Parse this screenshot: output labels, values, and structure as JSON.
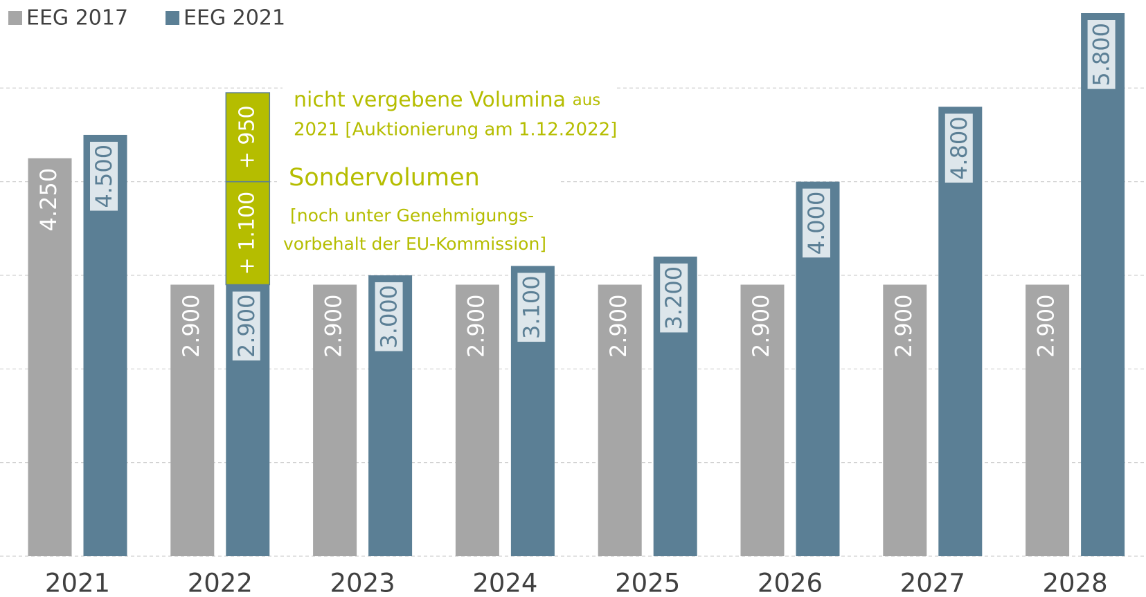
{
  "chart_data": {
    "type": "bar",
    "categories": [
      "2021",
      "2022",
      "2023",
      "2024",
      "2025",
      "2026",
      "2027",
      "2028"
    ],
    "series": [
      {
        "name": "EEG 2017",
        "color": "#a6a6a6",
        "values": [
          4250,
          2900,
          2900,
          2900,
          2900,
          2900,
          2900,
          2900
        ],
        "value_labels": [
          "4.250",
          "2.900",
          "2.900",
          "2.900",
          "2.900",
          "2.900",
          "2.900",
          "2.900"
        ]
      },
      {
        "name": "EEG 2021",
        "color": "#5b7f95",
        "values": [
          4500,
          2900,
          3000,
          3100,
          3200,
          4000,
          4800,
          5800
        ],
        "value_labels": [
          "4.500",
          "2.900",
          "3.000",
          "3.100",
          "3.200",
          "4.000",
          "4.800",
          "5.800"
        ]
      }
    ],
    "additions": {
      "color": "#b5bd00",
      "values": [
        1100,
        950
      ],
      "value_labels": [
        "+ 1.100",
        "+ 950"
      ]
    },
    "annotations": {
      "carryover": [
        "nicht vergebene Volumina",
        "aus",
        "2021 [Auktionierung am 1.12.2022]"
      ],
      "special": [
        "Sondervolumen",
        "[noch unter Genehmigungs-",
        "vorbehalt der EU-Kommission]"
      ]
    },
    "ylim": [
      0,
      5800
    ],
    "yticks": [
      0,
      1000,
      2000,
      3000,
      4000,
      5000
    ],
    "grid": true
  }
}
